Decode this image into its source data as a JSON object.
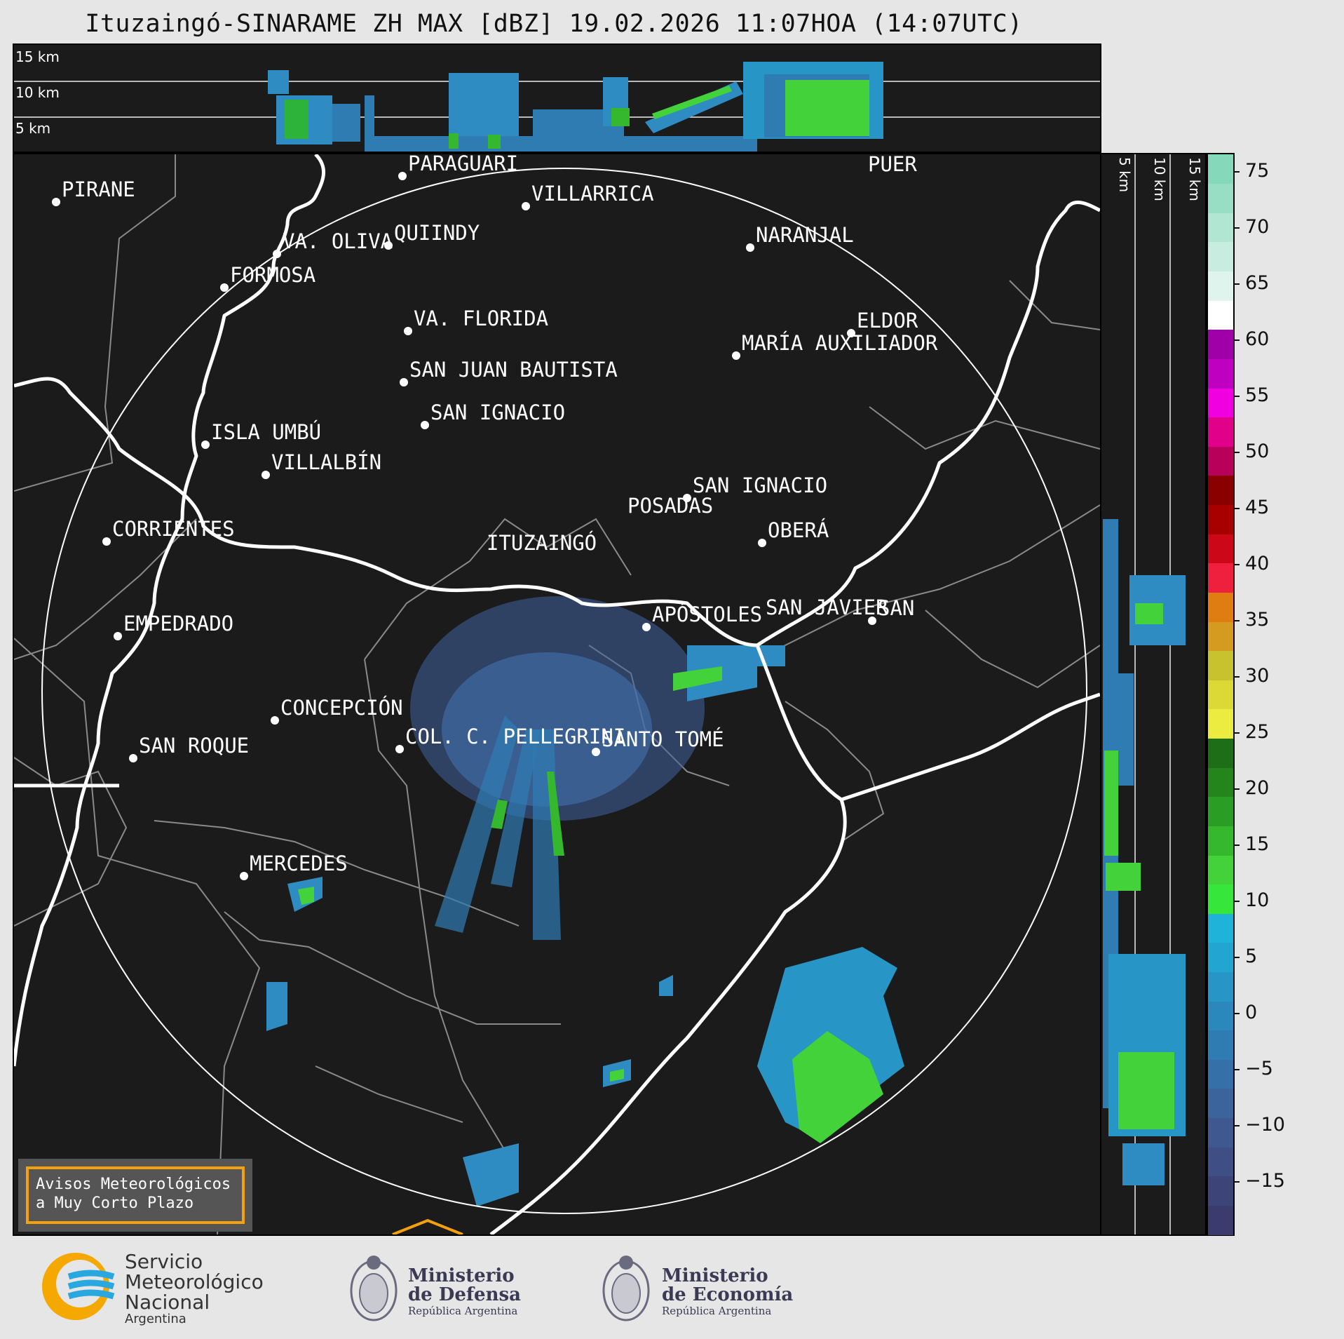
{
  "title": "Ituzaingó-SINARAME ZH MAX [dBZ] 19.02.2026 11:07HOA (14:07UTC)",
  "top_panel": {
    "altitude_labels": [
      "15 km",
      "10 km",
      "5 km"
    ]
  },
  "side_panel": {
    "altitude_labels": [
      "5 km",
      "10 km",
      "15 km"
    ]
  },
  "cities": [
    {
      "name": "PIRANE"
    },
    {
      "name": "PARAGUARÍ"
    },
    {
      "name": "VILLARRICA"
    },
    {
      "name": "VA. OLIVA"
    },
    {
      "name": "QUIINDY"
    },
    {
      "name": "NARANJAL"
    },
    {
      "name": "FORMOSA"
    },
    {
      "name": "VA. FLORIDA"
    },
    {
      "name": "ELDOR"
    },
    {
      "name": "MARÍA AUXILIADOR"
    },
    {
      "name": "SAN JUAN BAUTISTA"
    },
    {
      "name": "SAN IGNACIO"
    },
    {
      "name": "ISLA UMBÚ"
    },
    {
      "name": "VILLALBÍN"
    },
    {
      "name": "SAN IGNACIO"
    },
    {
      "name": "POSADAS"
    },
    {
      "name": "CORRIENTES"
    },
    {
      "name": "ITUZAINGÓ"
    },
    {
      "name": "OBERÁ"
    },
    {
      "name": "EMPEDRADO"
    },
    {
      "name": "APÓSTOLES"
    },
    {
      "name": "SAN JAVIER"
    },
    {
      "name": "SAN"
    },
    {
      "name": "CONCEPCIÓN"
    },
    {
      "name": "COL. C. PELLEGRINI"
    },
    {
      "name": "SANTO TOMÉ"
    },
    {
      "name": "SAN ROQUE"
    },
    {
      "name": "MERCEDES"
    },
    {
      "name": "PUER"
    }
  ],
  "colorbar": {
    "ticks": [
      "75",
      "70",
      "65",
      "60",
      "55",
      "50",
      "45",
      "40",
      "35",
      "30",
      "25",
      "20",
      "15",
      "10",
      "5",
      "0",
      "−5",
      "−10",
      "−15"
    ],
    "colors": [
      "#3b3b6e",
      "#3d4478",
      "#3f4e84",
      "#3f5990",
      "#3b649c",
      "#3570a8",
      "#2f7cb3",
      "#2b88bd",
      "#2796c6",
      "#22a5d0",
      "#1fb3da",
      "#36e63a",
      "#43d23a",
      "#36b82e",
      "#2a9e24",
      "#23851c",
      "#1d6e17",
      "#ecec40",
      "#dcd835",
      "#c8c22e",
      "#d49b20",
      "#e07d12",
      "#ef1f3e",
      "#cc0818",
      "#a80000",
      "#8a0000",
      "#b8005a",
      "#e0008a",
      "#f000e0",
      "#c000c0",
      "#a000a8",
      "#ffffff",
      "#e0f4ee",
      "#c8ecdf",
      "#b0e6d2",
      "#98dec4",
      "#86d8ba"
    ]
  },
  "avisos": {
    "line1": "Avisos Meteorológicos",
    "line2": "a Muy Corto Plazo"
  },
  "footer": {
    "smn": {
      "line1": "Servicio",
      "line2": "Meteorológico",
      "line3": "Nacional",
      "line4": "Argentina"
    },
    "defensa": {
      "line1": "Ministerio",
      "line2": "de Defensa",
      "line3": "República Argentina"
    },
    "economia": {
      "line1": "Ministerio",
      "line2": "de Economía",
      "line3": "República Argentina"
    }
  }
}
